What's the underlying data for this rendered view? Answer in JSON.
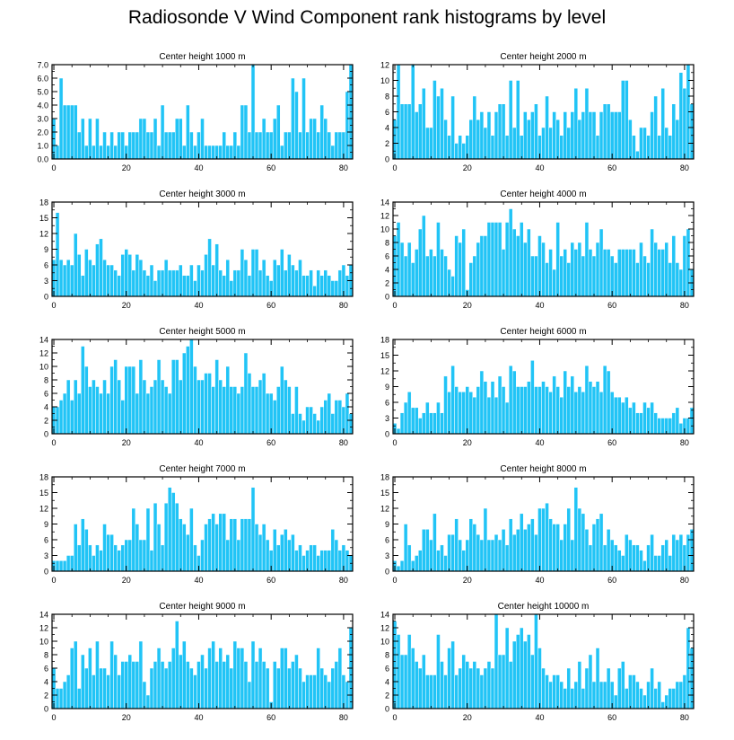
{
  "title": "Radiosonde V Wind Component rank histograms by level",
  "bar_color": "#21c4f6",
  "chart_data": [
    {
      "type": "bar",
      "title": "Center height 1000 m",
      "xticks": [
        0,
        20,
        40,
        60,
        80
      ],
      "xlim": [
        -0.5,
        82.5
      ],
      "yticks": [
        0,
        1,
        2,
        3,
        4,
        5,
        6,
        7
      ],
      "ytick_labels": [
        "0.0",
        "1.0",
        "2.0",
        "3.0",
        "4.0",
        "5.0",
        "6.0",
        "7.0"
      ],
      "ylim": [
        0,
        7
      ],
      "values": [
        3,
        1,
        6,
        4,
        4,
        4,
        4,
        2,
        3,
        1,
        3,
        1,
        3,
        1,
        2,
        1,
        2,
        1,
        2,
        2,
        1,
        2,
        2,
        2,
        3,
        3,
        2,
        2,
        3,
        1,
        4,
        2,
        2,
        2,
        3,
        3,
        1,
        4,
        2,
        1,
        2,
        3,
        1,
        1,
        1,
        1,
        1,
        2,
        1,
        1,
        2,
        1,
        4,
        4,
        2,
        7,
        2,
        2,
        3,
        2,
        2,
        3,
        4,
        1,
        2,
        2,
        6,
        5,
        2,
        6,
        2,
        3,
        3,
        2,
        4,
        3,
        2,
        1,
        2,
        2,
        2,
        5,
        7
      ]
    },
    {
      "type": "bar",
      "title": "Center height 2000 m",
      "xticks": [
        0,
        20,
        40,
        60,
        80
      ],
      "xlim": [
        -0.5,
        82.5
      ],
      "yticks": [
        0,
        2,
        4,
        6,
        8,
        10,
        12
      ],
      "ytick_labels": [
        "0",
        "2",
        "4",
        "6",
        "8",
        "10",
        "12"
      ],
      "ylim": [
        0,
        12
      ],
      "values": [
        5,
        12,
        7,
        7,
        7,
        12,
        6,
        7,
        9,
        4,
        4,
        10,
        8,
        9,
        5,
        3,
        8,
        2,
        3,
        2,
        3,
        5,
        8,
        5,
        6,
        4,
        6,
        3,
        6,
        7,
        7,
        3,
        10,
        4,
        10,
        3,
        6,
        5,
        6,
        7,
        3,
        4,
        8,
        4,
        6,
        5,
        3,
        6,
        4,
        6,
        9,
        5,
        6,
        9,
        6,
        6,
        3,
        6,
        7,
        7,
        6,
        6,
        6,
        10,
        10,
        5,
        3,
        1,
        4,
        4,
        3,
        6,
        8,
        3,
        9,
        4,
        3,
        7,
        5,
        11,
        9,
        12,
        7
      ]
    },
    {
      "type": "bar",
      "title": "Center height 3000 m",
      "xticks": [
        0,
        20,
        40,
        60,
        80
      ],
      "xlim": [
        -0.5,
        82.5
      ],
      "yticks": [
        0,
        3,
        6,
        9,
        12,
        15,
        18
      ],
      "ytick_labels": [
        "0",
        "3",
        "6",
        "9",
        "12",
        "15",
        "18"
      ],
      "ylim": [
        0,
        18
      ],
      "values": [
        7,
        16,
        7,
        6,
        7,
        6,
        12,
        8,
        4,
        9,
        7,
        6,
        10,
        11,
        7,
        6,
        6,
        5,
        4,
        8,
        9,
        8,
        5,
        8,
        7,
        5,
        4,
        6,
        3,
        5,
        5,
        7,
        5,
        5,
        5,
        6,
        4,
        4,
        6,
        3,
        6,
        5,
        8,
        11,
        6,
        10,
        5,
        4,
        7,
        3,
        5,
        5,
        9,
        7,
        4,
        9,
        9,
        5,
        7,
        4,
        3,
        7,
        6,
        9,
        5,
        8,
        6,
        5,
        7,
        4,
        4,
        5,
        2,
        5,
        4,
        5,
        4,
        3,
        3,
        5,
        6,
        4,
        6
      ]
    },
    {
      "type": "bar",
      "title": "Center height 4000 m",
      "xticks": [
        0,
        20,
        40,
        60,
        80
      ],
      "xlim": [
        -0.5,
        82.5
      ],
      "yticks": [
        0,
        2,
        4,
        6,
        8,
        10,
        12,
        14
      ],
      "ytick_labels": [
        "0",
        "2",
        "4",
        "6",
        "8",
        "10",
        "12",
        "14"
      ],
      "ylim": [
        0,
        14
      ],
      "values": [
        9,
        11,
        8,
        6,
        8,
        5,
        7,
        10,
        12,
        6,
        7,
        6,
        11,
        7,
        6,
        4,
        3,
        9,
        8,
        10,
        1,
        5,
        6,
        8,
        9,
        9,
        11,
        11,
        11,
        11,
        7,
        11,
        13,
        10,
        9,
        11,
        8,
        10,
        6,
        6,
        9,
        8,
        5,
        7,
        4,
        11,
        6,
        7,
        5,
        8,
        7,
        8,
        6,
        11,
        7,
        6,
        8,
        10,
        7,
        7,
        6,
        5,
        7,
        7,
        7,
        7,
        7,
        5,
        8,
        6,
        5,
        10,
        8,
        7,
        7,
        8,
        5,
        9,
        5,
        4,
        9,
        10,
        4
      ]
    },
    {
      "type": "bar",
      "title": "Center height 5000 m",
      "xticks": [
        0,
        20,
        40,
        60,
        80
      ],
      "xlim": [
        -0.5,
        82.5
      ],
      "yticks": [
        0,
        2,
        4,
        6,
        8,
        10,
        12,
        14
      ],
      "ytick_labels": [
        "0",
        "2",
        "4",
        "6",
        "8",
        "10",
        "12",
        "14"
      ],
      "ylim": [
        0,
        14
      ],
      "values": [
        4,
        4,
        5,
        6,
        8,
        5,
        8,
        6,
        13,
        10,
        7,
        8,
        7,
        6,
        8,
        6,
        10,
        11,
        8,
        5,
        10,
        10,
        10,
        6,
        11,
        8,
        6,
        7,
        8,
        11,
        8,
        7,
        6,
        11,
        11,
        8,
        12,
        13,
        14,
        10,
        8,
        8,
        9,
        9,
        7,
        11,
        8,
        7,
        10,
        7,
        7,
        6,
        7,
        12,
        9,
        7,
        7,
        8,
        9,
        6,
        6,
        5,
        7,
        10,
        8,
        7,
        3,
        7,
        3,
        2,
        4,
        4,
        3,
        2,
        4,
        5,
        6,
        3,
        5,
        5,
        4,
        6,
        3
      ]
    },
    {
      "type": "bar",
      "title": "Center height 6000 m",
      "xticks": [
        0,
        20,
        40,
        60,
        80
      ],
      "xlim": [
        -0.5,
        82.5
      ],
      "yticks": [
        0,
        3,
        6,
        9,
        12,
        15,
        18
      ],
      "ytick_labels": [
        "0",
        "3",
        "6",
        "9",
        "12",
        "15",
        "18"
      ],
      "ylim": [
        0,
        18
      ],
      "values": [
        2,
        1,
        4,
        6,
        8,
        5,
        5,
        3,
        4,
        6,
        4,
        4,
        6,
        4,
        11,
        8,
        13,
        9,
        8,
        8,
        9,
        8,
        7,
        9,
        12,
        10,
        7,
        10,
        7,
        11,
        9,
        6,
        13,
        12,
        9,
        9,
        9,
        10,
        14,
        9,
        9,
        10,
        9,
        8,
        11,
        9,
        7,
        12,
        9,
        11,
        8,
        9,
        8,
        13,
        10,
        9,
        10,
        8,
        13,
        12,
        8,
        7,
        7,
        6,
        7,
        5,
        6,
        4,
        4,
        6,
        5,
        6,
        4,
        3,
        3,
        3,
        3,
        4,
        5,
        2,
        3,
        3,
        5
      ]
    },
    {
      "type": "bar",
      "title": "Center height 7000 m",
      "xticks": [
        0,
        20,
        40,
        60,
        80
      ],
      "xlim": [
        -0.5,
        82.5
      ],
      "yticks": [
        0,
        3,
        6,
        9,
        12,
        15,
        18
      ],
      "ytick_labels": [
        "0",
        "3",
        "6",
        "9",
        "12",
        "15",
        "18"
      ],
      "ylim": [
        0,
        18
      ],
      "values": [
        2,
        2,
        2,
        2,
        3,
        3,
        9,
        5,
        10,
        8,
        5,
        3,
        5,
        4,
        9,
        7,
        7,
        5,
        4,
        5,
        6,
        6,
        12,
        9,
        6,
        6,
        12,
        4,
        13,
        9,
        5,
        13,
        16,
        15,
        13,
        10,
        9,
        7,
        12,
        5,
        3,
        6,
        9,
        10,
        11,
        9,
        11,
        11,
        6,
        10,
        10,
        6,
        10,
        10,
        10,
        16,
        9,
        7,
        9,
        6,
        4,
        8,
        5,
        7,
        8,
        6,
        7,
        4,
        5,
        3,
        4,
        5,
        5,
        3,
        4,
        4,
        4,
        8,
        6,
        4,
        5,
        4,
        3
      ]
    },
    {
      "type": "bar",
      "title": "Center height 8000 m",
      "xticks": [
        0,
        20,
        40,
        60,
        80
      ],
      "xlim": [
        -0.5,
        82.5
      ],
      "yticks": [
        0,
        3,
        6,
        9,
        12,
        15,
        18
      ],
      "ytick_labels": [
        "0",
        "3",
        "6",
        "9",
        "12",
        "15",
        "18"
      ],
      "ylim": [
        0,
        18
      ],
      "values": [
        2,
        1,
        2,
        9,
        5,
        2,
        3,
        4,
        8,
        8,
        6,
        11,
        4,
        5,
        3,
        7,
        7,
        10,
        6,
        4,
        6,
        10,
        9,
        7,
        6,
        12,
        6,
        6,
        7,
        6,
        8,
        5,
        10,
        7,
        8,
        11,
        8,
        9,
        10,
        7,
        12,
        12,
        13,
        10,
        9,
        9,
        6,
        9,
        12,
        6,
        16,
        12,
        11,
        8,
        5,
        9,
        10,
        11,
        5,
        8,
        6,
        5,
        4,
        3,
        7,
        6,
        5,
        5,
        4,
        2,
        5,
        7,
        3,
        3,
        5,
        6,
        3,
        7,
        6,
        7,
        5,
        7,
        8
      ]
    },
    {
      "type": "bar",
      "title": "Center height 9000 m",
      "xticks": [
        0,
        20,
        40,
        60,
        80
      ],
      "xlim": [
        -0.5,
        82.5
      ],
      "yticks": [
        0,
        2,
        4,
        6,
        8,
        10,
        12,
        14
      ],
      "ytick_labels": [
        "0",
        "2",
        "4",
        "6",
        "8",
        "10",
        "12",
        "14"
      ],
      "ylim": [
        0,
        14
      ],
      "values": [
        6,
        3,
        3,
        4,
        5,
        9,
        10,
        3,
        8,
        6,
        9,
        5,
        10,
        6,
        6,
        5,
        10,
        8,
        5,
        7,
        7,
        8,
        7,
        7,
        10,
        4,
        2,
        6,
        7,
        9,
        7,
        6,
        7,
        9,
        13,
        8,
        10,
        7,
        6,
        5,
        7,
        8,
        6,
        9,
        10,
        7,
        9,
        7,
        8,
        6,
        10,
        9,
        9,
        7,
        4,
        10,
        7,
        9,
        7,
        6,
        1,
        7,
        6,
        9,
        9,
        6,
        7,
        8,
        6,
        4,
        5,
        5,
        5,
        9,
        6,
        5,
        4,
        6,
        7,
        9,
        5,
        4,
        12
      ]
    },
    {
      "type": "bar",
      "title": "Center height 10000 m",
      "xticks": [
        0,
        20,
        40,
        60,
        80
      ],
      "xlim": [
        -0.5,
        82.5
      ],
      "yticks": [
        0,
        2,
        4,
        6,
        8,
        10,
        12,
        14
      ],
      "ytick_labels": [
        "0",
        "2",
        "4",
        "6",
        "8",
        "10",
        "12",
        "14"
      ],
      "ylim": [
        0,
        14
      ],
      "values": [
        13,
        11,
        8,
        8,
        11,
        9,
        7,
        6,
        8,
        5,
        5,
        5,
        11,
        7,
        5,
        9,
        10,
        5,
        6,
        8,
        7,
        6,
        7,
        6,
        5,
        6,
        7,
        6,
        14,
        8,
        8,
        12,
        7,
        10,
        11,
        12,
        10,
        11,
        8,
        14,
        9,
        6,
        5,
        4,
        5,
        5,
        4,
        3,
        6,
        3,
        4,
        7,
        3,
        6,
        8,
        4,
        9,
        4,
        4,
        6,
        4,
        2,
        6,
        7,
        3,
        5,
        5,
        4,
        3,
        2,
        4,
        6,
        3,
        4,
        1,
        2,
        3,
        3,
        4,
        4,
        5,
        12,
        9
      ]
    }
  ]
}
